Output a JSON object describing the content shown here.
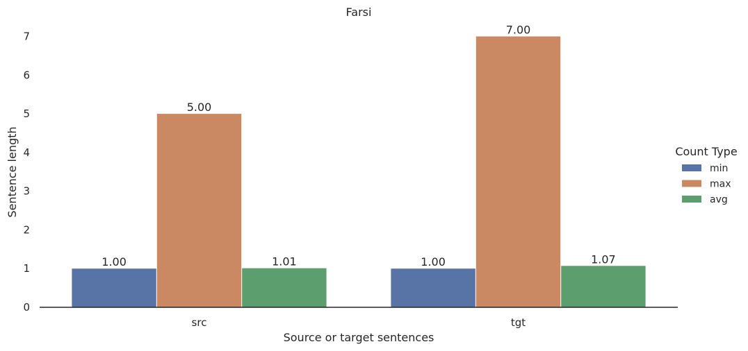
{
  "chart_data": {
    "type": "bar",
    "title": "Farsi",
    "xlabel": "Source or target sentences",
    "ylabel": "Sentence length",
    "categories": [
      "src",
      "tgt"
    ],
    "series": [
      {
        "name": "min",
        "values": [
          1.0,
          1.0
        ],
        "color": "#5874a6"
      },
      {
        "name": "max",
        "values": [
          5.0,
          7.0
        ],
        "color": "#cb8963"
      },
      {
        "name": "avg",
        "values": [
          1.01,
          1.07
        ],
        "color": "#5c9e6d"
      }
    ],
    "data_labels": [
      [
        "1.00",
        "1.00"
      ],
      [
        "5.00",
        "7.00"
      ],
      [
        "1.01",
        "1.07"
      ]
    ],
    "ylim": [
      0,
      7.0
    ],
    "yticks": [
      "0",
      "1",
      "2",
      "3",
      "4",
      "5",
      "6",
      "7"
    ],
    "grid": false,
    "legend": {
      "title": "Count Type",
      "placement": "right"
    }
  }
}
